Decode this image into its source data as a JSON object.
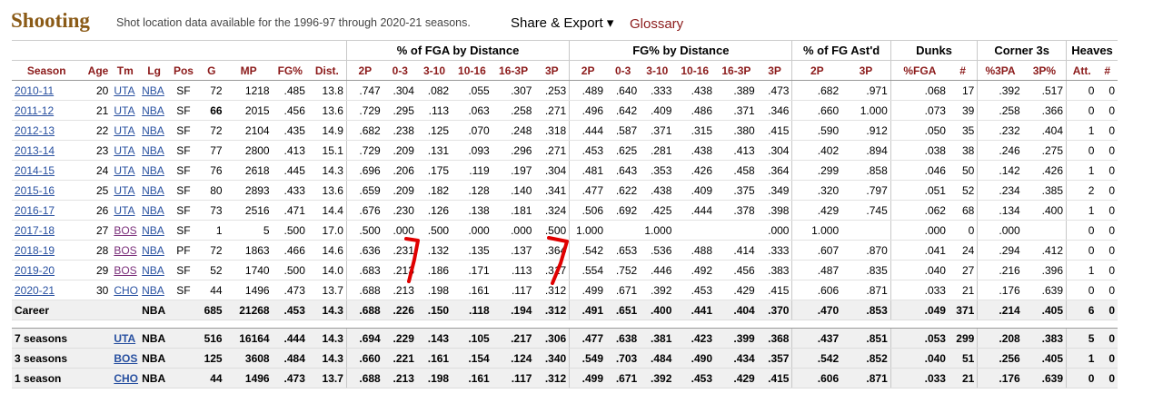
{
  "header": {
    "title": "Shooting",
    "note": "Shot location data available for the 1996-97 through 2020-21 seasons.",
    "share_label": "Share & Export ▾",
    "glossary_label": "Glossary"
  },
  "groups": {
    "fga_dist": "% of FGA by Distance",
    "fg_dist": "FG% by Distance",
    "ast": "% of FG Ast'd",
    "dunks": "Dunks",
    "corner": "Corner 3s",
    "heaves": "Heaves"
  },
  "columns": [
    "Season",
    "Age",
    "Tm",
    "Lg",
    "Pos",
    "G",
    "MP",
    "FG%",
    "Dist.",
    "2P",
    "0-3",
    "3-10",
    "10-16",
    "16-3P",
    "3P",
    "2P",
    "0-3",
    "3-10",
    "10-16",
    "16-3P",
    "3P",
    "2P",
    "3P",
    "%FGA",
    "#",
    "%3PA",
    "3P%",
    "Att.",
    "#"
  ],
  "rows": [
    {
      "season": "2010-11",
      "age": "20",
      "tm": "UTA",
      "lg": "NBA",
      "pos": "SF",
      "g": "72",
      "mp": "1218",
      "fg": ".485",
      "dist": "13.8",
      "f2p": ".747",
      "f03": ".304",
      "f310": ".082",
      "f1016": ".055",
      "f163": ".307",
      "f3p": ".253",
      "g2p": ".489",
      "g03": ".640",
      "g310": ".333",
      "g1016": ".438",
      "g163": ".389",
      "g3p": ".473",
      "a2p": ".682",
      "a3p": ".971",
      "dpct": ".068",
      "dn": "17",
      "cpct": ".392",
      "c3p": ".517",
      "ha": "0",
      "hn": "0"
    },
    {
      "season": "2011-12",
      "age": "21",
      "tm": "UTA",
      "lg": "NBA",
      "pos": "SF",
      "g": "66",
      "mp": "2015",
      "fg": ".456",
      "dist": "13.6",
      "f2p": ".729",
      "f03": ".295",
      "f310": ".113",
      "f1016": ".063",
      "f163": ".258",
      "f3p": ".271",
      "g2p": ".496",
      "g03": ".642",
      "g310": ".409",
      "g1016": ".486",
      "g163": ".371",
      "g3p": ".346",
      "a2p": ".660",
      "a3p": "1.000",
      "dpct": ".073",
      "dn": "39",
      "cpct": ".258",
      "c3p": ".366",
      "ha": "0",
      "hn": "0"
    },
    {
      "season": "2012-13",
      "age": "22",
      "tm": "UTA",
      "lg": "NBA",
      "pos": "SF",
      "g": "72",
      "mp": "2104",
      "fg": ".435",
      "dist": "14.9",
      "f2p": ".682",
      "f03": ".238",
      "f310": ".125",
      "f1016": ".070",
      "f163": ".248",
      "f3p": ".318",
      "g2p": ".444",
      "g03": ".587",
      "g310": ".371",
      "g1016": ".315",
      "g163": ".380",
      "g3p": ".415",
      "a2p": ".590",
      "a3p": ".912",
      "dpct": ".050",
      "dn": "35",
      "cpct": ".232",
      "c3p": ".404",
      "ha": "1",
      "hn": "0"
    },
    {
      "season": "2013-14",
      "age": "23",
      "tm": "UTA",
      "lg": "NBA",
      "pos": "SF",
      "g": "77",
      "mp": "2800",
      "fg": ".413",
      "dist": "15.1",
      "f2p": ".729",
      "f03": ".209",
      "f310": ".131",
      "f1016": ".093",
      "f163": ".296",
      "f3p": ".271",
      "g2p": ".453",
      "g03": ".625",
      "g310": ".281",
      "g1016": ".438",
      "g163": ".413",
      "g3p": ".304",
      "a2p": ".402",
      "a3p": ".894",
      "dpct": ".038",
      "dn": "38",
      "cpct": ".246",
      "c3p": ".275",
      "ha": "0",
      "hn": "0"
    },
    {
      "season": "2014-15",
      "age": "24",
      "tm": "UTA",
      "lg": "NBA",
      "pos": "SF",
      "g": "76",
      "mp": "2618",
      "fg": ".445",
      "dist": "14.3",
      "f2p": ".696",
      "f03": ".206",
      "f310": ".175",
      "f1016": ".119",
      "f163": ".197",
      "f3p": ".304",
      "g2p": ".481",
      "g03": ".643",
      "g310": ".353",
      "g1016": ".426",
      "g163": ".458",
      "g3p": ".364",
      "a2p": ".299",
      "a3p": ".858",
      "dpct": ".046",
      "dn": "50",
      "cpct": ".142",
      "c3p": ".426",
      "ha": "1",
      "hn": "0"
    },
    {
      "season": "2015-16",
      "age": "25",
      "tm": "UTA",
      "lg": "NBA",
      "pos": "SF",
      "g": "80",
      "mp": "2893",
      "fg": ".433",
      "dist": "13.6",
      "f2p": ".659",
      "f03": ".209",
      "f310": ".182",
      "f1016": ".128",
      "f163": ".140",
      "f3p": ".341",
      "g2p": ".477",
      "g03": ".622",
      "g310": ".438",
      "g1016": ".409",
      "g163": ".375",
      "g3p": ".349",
      "a2p": ".320",
      "a3p": ".797",
      "dpct": ".051",
      "dn": "52",
      "cpct": ".234",
      "c3p": ".385",
      "ha": "2",
      "hn": "0"
    },
    {
      "season": "2016-17",
      "age": "26",
      "tm": "UTA",
      "lg": "NBA",
      "pos": "SF",
      "g": "73",
      "mp": "2516",
      "fg": ".471",
      "dist": "14.4",
      "f2p": ".676",
      "f03": ".230",
      "f310": ".126",
      "f1016": ".138",
      "f163": ".181",
      "f3p": ".324",
      "g2p": ".506",
      "g03": ".692",
      "g310": ".425",
      "g1016": ".444",
      "g163": ".378",
      "g3p": ".398",
      "a2p": ".429",
      "a3p": ".745",
      "dpct": ".062",
      "dn": "68",
      "cpct": ".134",
      "c3p": ".400",
      "ha": "1",
      "hn": "0"
    },
    {
      "season": "2017-18",
      "age": "27",
      "tm": "BOS",
      "lg": "NBA",
      "pos": "SF",
      "g": "1",
      "mp": "5",
      "fg": ".500",
      "dist": "17.0",
      "f2p": ".500",
      "f03": ".000",
      "f310": ".500",
      "f1016": ".000",
      "f163": ".000",
      "f3p": ".500",
      "g2p": "1.000",
      "g03": "",
      "g310": "1.000",
      "g1016": "",
      "g163": "",
      "g3p": ".000",
      "a2p": "1.000",
      "a3p": "",
      "dpct": ".000",
      "dn": "0",
      "cpct": ".000",
      "c3p": "",
      "ha": "0",
      "hn": "0"
    },
    {
      "season": "2018-19",
      "age": "28",
      "tm": "BOS",
      "lg": "NBA",
      "pos": "PF",
      "g": "72",
      "mp": "1863",
      "fg": ".466",
      "dist": "14.6",
      "f2p": ".636",
      "f03": ".231",
      "f310": ".132",
      "f1016": ".135",
      "f163": ".137",
      "f3p": ".364",
      "g2p": ".542",
      "g03": ".653",
      "g310": ".536",
      "g1016": ".488",
      "g163": ".414",
      "g3p": ".333",
      "a2p": ".607",
      "a3p": ".870",
      "dpct": ".041",
      "dn": "24",
      "cpct": ".294",
      "c3p": ".412",
      "ha": "0",
      "hn": "0"
    },
    {
      "season": "2019-20",
      "age": "29",
      "tm": "BOS",
      "lg": "NBA",
      "pos": "SF",
      "g": "52",
      "mp": "1740",
      "fg": ".500",
      "dist": "14.0",
      "f2p": ".683",
      "f03": ".213",
      "f310": ".186",
      "f1016": ".171",
      "f163": ".113",
      "f3p": ".317",
      "g2p": ".554",
      "g03": ".752",
      "g310": ".446",
      "g1016": ".492",
      "g163": ".456",
      "g3p": ".383",
      "a2p": ".487",
      "a3p": ".835",
      "dpct": ".040",
      "dn": "27",
      "cpct": ".216",
      "c3p": ".396",
      "ha": "1",
      "hn": "0"
    },
    {
      "season": "2020-21",
      "age": "30",
      "tm": "CHO",
      "lg": "NBA",
      "pos": "SF",
      "g": "44",
      "mp": "1496",
      "fg": ".473",
      "dist": "13.7",
      "f2p": ".688",
      "f03": ".213",
      "f310": ".198",
      "f1016": ".161",
      "f163": ".117",
      "f3p": ".312",
      "g2p": ".499",
      "g03": ".671",
      "g310": ".392",
      "g1016": ".453",
      "g163": ".429",
      "g3p": ".415",
      "a2p": ".606",
      "a3p": ".871",
      "dpct": ".033",
      "dn": "21",
      "cpct": ".176",
      "c3p": ".639",
      "ha": "0",
      "hn": "0"
    }
  ],
  "totals": [
    {
      "season": "Career",
      "tm": "",
      "lg": "NBA",
      "g": "685",
      "mp": "21268",
      "fg": ".453",
      "dist": "14.3",
      "f2p": ".688",
      "f03": ".226",
      "f310": ".150",
      "f1016": ".118",
      "f163": ".194",
      "f3p": ".312",
      "g2p": ".491",
      "g03": ".651",
      "g310": ".400",
      "g1016": ".441",
      "g163": ".404",
      "g3p": ".370",
      "a2p": ".470",
      "a3p": ".853",
      "dpct": ".049",
      "dn": "371",
      "cpct": ".214",
      "c3p": ".405",
      "ha": "6",
      "hn": "0"
    },
    {
      "season": "7 seasons",
      "tm": "UTA",
      "lg": "NBA",
      "g": "516",
      "mp": "16164",
      "fg": ".444",
      "dist": "14.3",
      "f2p": ".694",
      "f03": ".229",
      "f310": ".143",
      "f1016": ".105",
      "f163": ".217",
      "f3p": ".306",
      "g2p": ".477",
      "g03": ".638",
      "g310": ".381",
      "g1016": ".423",
      "g163": ".399",
      "g3p": ".368",
      "a2p": ".437",
      "a3p": ".851",
      "dpct": ".053",
      "dn": "299",
      "cpct": ".208",
      "c3p": ".383",
      "ha": "5",
      "hn": "0"
    },
    {
      "season": "3 seasons",
      "tm": "BOS",
      "lg": "NBA",
      "g": "125",
      "mp": "3608",
      "fg": ".484",
      "dist": "14.3",
      "f2p": ".660",
      "f03": ".221",
      "f310": ".161",
      "f1016": ".154",
      "f163": ".124",
      "f3p": ".340",
      "g2p": ".549",
      "g03": ".703",
      "g310": ".484",
      "g1016": ".490",
      "g163": ".434",
      "g3p": ".357",
      "a2p": ".542",
      "a3p": ".852",
      "dpct": ".040",
      "dn": "51",
      "cpct": ".256",
      "c3p": ".405",
      "ha": "1",
      "hn": "0"
    },
    {
      "season": "1 season",
      "tm": "CHO",
      "lg": "NBA",
      "g": "44",
      "mp": "1496",
      "fg": ".473",
      "dist": "13.7",
      "f2p": ".688",
      "f03": ".213",
      "f310": ".198",
      "f1016": ".161",
      "f163": ".117",
      "f3p": ".312",
      "g2p": ".499",
      "g03": ".671",
      "g310": ".392",
      "g1016": ".453",
      "g163": ".429",
      "g3p": ".415",
      "a2p": ".606",
      "a3p": ".871",
      "dpct": ".033",
      "dn": "21",
      "cpct": ".176",
      "c3p": ".639",
      "ha": "0",
      "hn": "0"
    }
  ],
  "colors": {
    "title": "#8a5a16",
    "header_text": "#8b1a1a",
    "link": "#2850a0",
    "link_visited": "#7a2e7a",
    "annotation": "#e00000"
  },
  "icons": {
    "share_caret": "chevron-down-icon"
  }
}
